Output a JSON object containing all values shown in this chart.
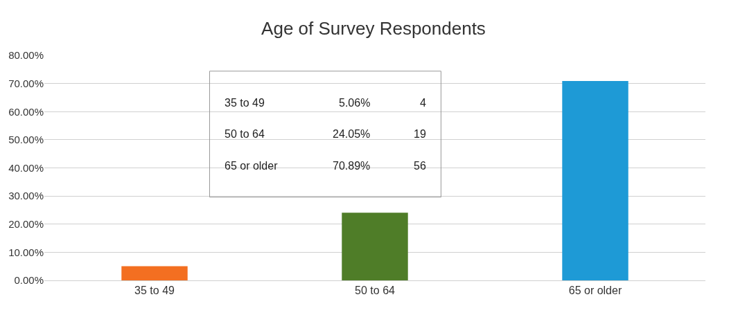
{
  "chart_data": {
    "type": "bar",
    "title": "Age of Survey Respondents",
    "categories": [
      "35 to 49",
      "50 to 64",
      "65 or older"
    ],
    "values": [
      5.06,
      24.05,
      70.89
    ],
    "colors": [
      "#f36f21",
      "#4f7d28",
      "#1e9ad6"
    ],
    "ylim": [
      0,
      80
    ],
    "yticks": [
      {
        "value": 0,
        "label": "0.00%"
      },
      {
        "value": 10,
        "label": "10.00%"
      },
      {
        "value": 20,
        "label": "20.00%"
      },
      {
        "value": 30,
        "label": "30.00%"
      },
      {
        "value": 40,
        "label": "40.00%"
      },
      {
        "value": 50,
        "label": "50.00%"
      },
      {
        "value": 60,
        "label": "60.00%"
      },
      {
        "value": 70,
        "label": "70.00%"
      },
      {
        "value": 80,
        "label": "80.00%"
      }
    ],
    "grid": "y",
    "annotations": [
      "35 to 49",
      "5.06%",
      "4",
      "50 to 64",
      "24.05%",
      "19",
      "65 or older",
      "70.89%",
      "56"
    ]
  }
}
